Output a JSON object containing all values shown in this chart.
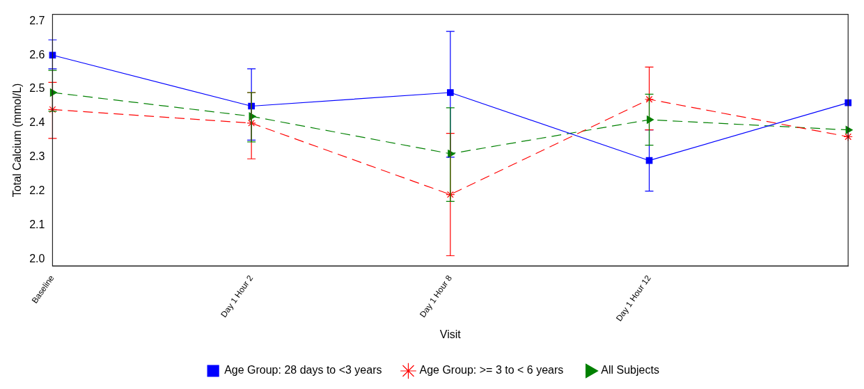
{
  "chart_data": {
    "type": "line",
    "xlabel": "Visit",
    "ylabel": "Total Calcium (mmol/L)",
    "categories": [
      "Baseline",
      "Day 1 Hour 2",
      "Day 1 Hour 8",
      "Day 1 Hour 12",
      null
    ],
    "ylim": [
      1.98,
      2.72
    ],
    "yticks": [
      {
        "value": 2,
        "label": "2.0"
      },
      2.1,
      2.2,
      2.3,
      2.4,
      2.5,
      2.6,
      2.7
    ],
    "grid": false,
    "legend": "bottom",
    "series": [
      {
        "name": "Age Group: 28 days to <3 years",
        "color": "#0000ff",
        "marker": "square",
        "line_style": "solid",
        "values": [
          2.6,
          2.45,
          2.49,
          2.29,
          2.46
        ],
        "errors": [
          [
            2.56,
            2.645
          ],
          [
            2.35,
            2.56
          ],
          [
            2.3,
            2.67
          ],
          [
            2.2,
            2.38
          ],
          null
        ]
      },
      {
        "name": "Age Group: >= 3 to < 6 years",
        "color": "#ff0000",
        "marker": "cross",
        "line_style": "dashed",
        "values": [
          2.44,
          2.4,
          2.19,
          2.47,
          2.36
        ],
        "errors": [
          [
            2.355,
            2.52
          ],
          [
            2.295,
            2.49
          ],
          [
            2.01,
            2.37
          ],
          [
            2.38,
            2.565
          ],
          null
        ]
      },
      {
        "name": "All Subjects",
        "color": "#008000",
        "marker": "triangle",
        "line_style": "dashed",
        "values": [
          2.49,
          2.42,
          2.31,
          2.41,
          2.38
        ],
        "errors": [
          [
            2.435,
            2.555
          ],
          [
            2.345,
            2.49
          ],
          [
            2.17,
            2.445
          ],
          [
            2.335,
            2.485
          ],
          null
        ]
      }
    ]
  }
}
